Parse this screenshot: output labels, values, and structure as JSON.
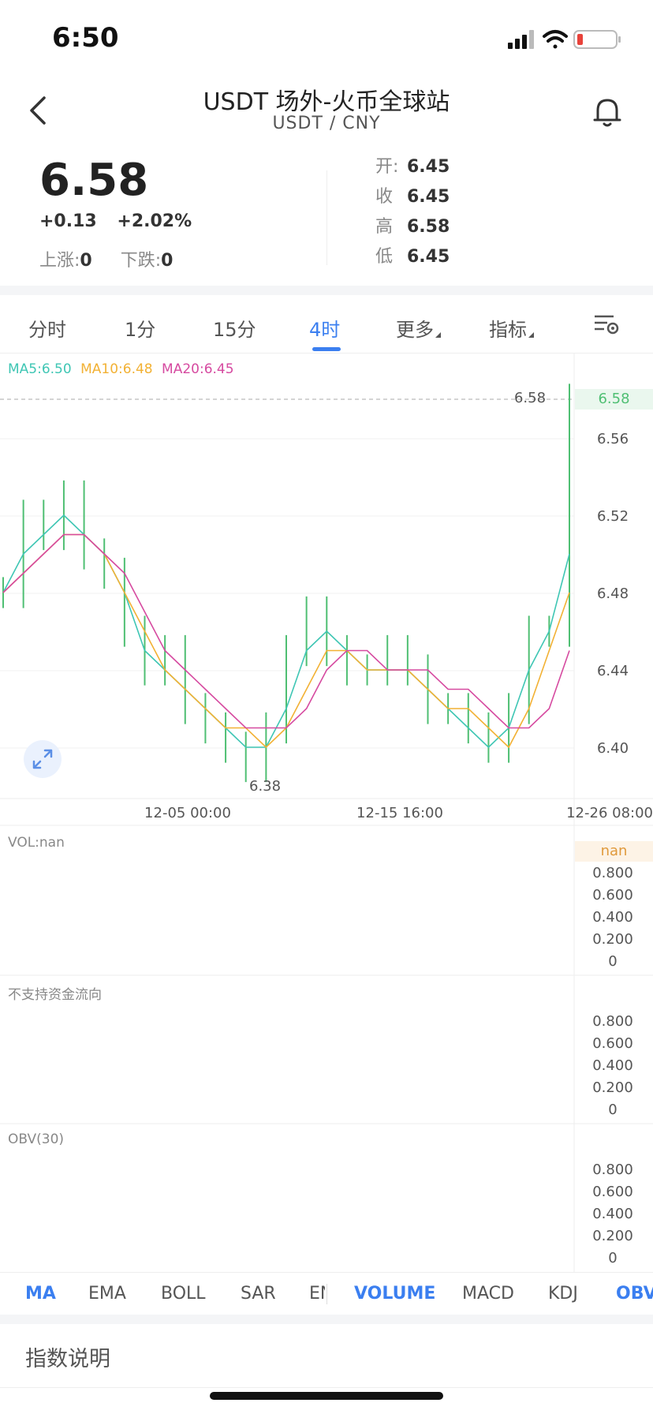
{
  "status_bar": {
    "time": "6:50"
  },
  "nav": {
    "title": "USDT 场外-火币全球站",
    "subtitle": "USDT / CNY"
  },
  "ticker": {
    "price": "6.58",
    "change_abs": "+0.13",
    "change_pct": "+2.02%",
    "up_label": "上涨:",
    "up_count": "0",
    "down_label": "下跌:",
    "down_count": "0",
    "open_label": "开:",
    "open": "6.45",
    "close_label": "收",
    "close": "6.45",
    "high_label": "高",
    "high": "6.58",
    "low_label": "低",
    "low": "6.45"
  },
  "period_tabs": [
    {
      "label": "分时"
    },
    {
      "label": "1分"
    },
    {
      "label": "15分"
    },
    {
      "label": "4时",
      "active": true
    },
    {
      "label": "更多"
    },
    {
      "label": "指标"
    }
  ],
  "main_chart": {
    "ma5_label": "MA5:6.50",
    "ma10_label": "MA10:6.48",
    "ma20_label": "MA20:6.45",
    "current_price_tag": "6.58",
    "current_price_line_label": "6.58",
    "min_marker": "6.38",
    "y_ticks": [
      "6.56",
      "6.52",
      "6.48",
      "6.44",
      "6.40"
    ],
    "x_ticks": [
      "12-05 00:00",
      "12-15 16:00",
      "12-26 08:00"
    ]
  },
  "volume_panel": {
    "label": "VOL:nan",
    "top_tag": "nan",
    "y_ticks": [
      "0.800",
      "0.600",
      "0.400",
      "0.200",
      "0"
    ]
  },
  "fund_panel": {
    "label": "不支持资金流向",
    "y_ticks": [
      "0.800",
      "0.600",
      "0.400",
      "0.200",
      "0"
    ]
  },
  "obv_panel": {
    "label": "OBV(30)",
    "y_ticks": [
      "0.800",
      "0.600",
      "0.400",
      "0.200",
      "0"
    ]
  },
  "indicator_tabs": {
    "main": [
      {
        "label": "MA",
        "active": true
      },
      {
        "label": "EMA"
      },
      {
        "label": "BOLL"
      },
      {
        "label": "SAR"
      },
      {
        "label": "EN"
      }
    ],
    "sub": [
      {
        "label": "VOLUME",
        "active": true
      },
      {
        "label": "MACD"
      },
      {
        "label": "KDJ"
      },
      {
        "label": "OBV",
        "active": true
      }
    ]
  },
  "footer": {
    "explain_title": "指数说明"
  },
  "colors": {
    "accent": "#3b7ff0",
    "up": "#4fbf73",
    "ma5": "#3fc6b4",
    "ma10": "#f2b134",
    "ma20": "#d64aa0",
    "nan": "#e09a3c"
  },
  "chart_data": {
    "type": "line",
    "title": "",
    "ylim": [
      6.38,
      6.58
    ],
    "x_ticks": [
      "12-05 00:00",
      "12-15 16:00",
      "12-26 08:00"
    ],
    "series": [
      {
        "name": "MA5",
        "values": [
          6.48,
          6.5,
          6.51,
          6.52,
          6.51,
          6.5,
          6.48,
          6.45,
          6.44,
          6.43,
          6.42,
          6.41,
          6.4,
          6.4,
          6.42,
          6.45,
          6.46,
          6.45,
          6.44,
          6.44,
          6.44,
          6.43,
          6.42,
          6.41,
          6.4,
          6.41,
          6.44,
          6.46,
          6.5
        ]
      },
      {
        "name": "MA10",
        "values": [
          6.48,
          6.49,
          6.5,
          6.51,
          6.51,
          6.5,
          6.48,
          6.46,
          6.44,
          6.43,
          6.42,
          6.41,
          6.41,
          6.4,
          6.41,
          6.43,
          6.45,
          6.45,
          6.44,
          6.44,
          6.44,
          6.43,
          6.42,
          6.42,
          6.41,
          6.4,
          6.42,
          6.45,
          6.48
        ]
      },
      {
        "name": "MA20",
        "values": [
          6.48,
          6.49,
          6.5,
          6.51,
          6.51,
          6.5,
          6.49,
          6.47,
          6.45,
          6.44,
          6.43,
          6.42,
          6.41,
          6.41,
          6.41,
          6.42,
          6.44,
          6.45,
          6.45,
          6.44,
          6.44,
          6.44,
          6.43,
          6.43,
          6.42,
          6.41,
          6.41,
          6.42,
          6.45
        ]
      }
    ],
    "candles_close": [
      6.48,
      6.52,
      6.51,
      6.53,
      6.5,
      6.49,
      6.46,
      6.44,
      6.45,
      6.42,
      6.41,
      6.4,
      6.39,
      6.41,
      6.45,
      6.47,
      6.45,
      6.44,
      6.44,
      6.45,
      6.44,
      6.42,
      6.42,
      6.41,
      6.4,
      6.42,
      6.46,
      6.46,
      6.58
    ]
  }
}
